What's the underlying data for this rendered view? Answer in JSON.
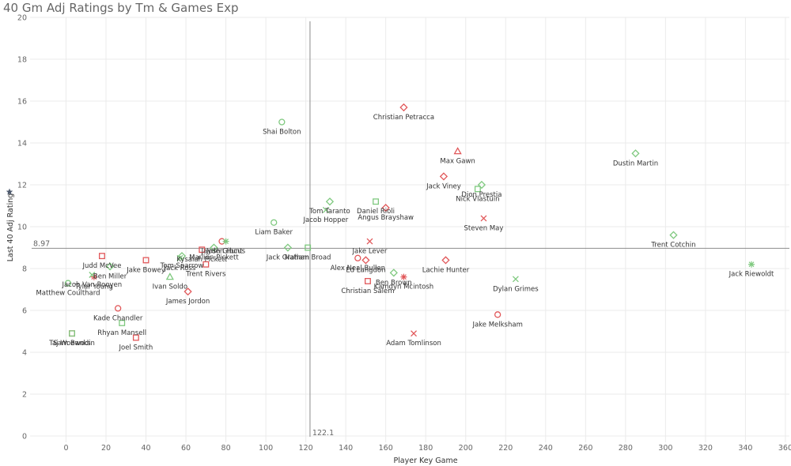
{
  "colors": {
    "red": "#e15759",
    "green": "#7fc97f",
    "grid": "#ebebeb",
    "ref": "#8c8c8c",
    "star": "#4e5a6e"
  },
  "chart_data": {
    "type": "scatter",
    "title": "40 Gm Adj Ratings by Tm & Games Exp",
    "xlabel": "Player Key Game",
    "ylabel": "Last 40 Adj Rating",
    "ylabel_icon": "star-icon",
    "xlim": [
      -18,
      362
    ],
    "ylim": [
      -0.3,
      20
    ],
    "xticks": [
      "0",
      "20",
      "40",
      "60",
      "80",
      "100",
      "120",
      "140",
      "160",
      "180",
      "200",
      "220",
      "240",
      "260",
      "280",
      "300",
      "320",
      "340",
      "360"
    ],
    "yticks": [
      "0",
      "2",
      "4",
      "6",
      "8",
      "10",
      "12",
      "14",
      "16",
      "18",
      "20"
    ],
    "ref_x": {
      "value": 122.1,
      "label": "122.1"
    },
    "ref_y": {
      "value": 8.97,
      "label": "8.97"
    },
    "points": [
      {
        "x": 169,
        "y": 15.7,
        "label": "Christian Petracca",
        "shape": "diamond",
        "color": "red"
      },
      {
        "x": 196,
        "y": 13.6,
        "label": "Max Gawn",
        "shape": "triangle",
        "color": "red"
      },
      {
        "x": 189,
        "y": 12.4,
        "label": "Jack Viney",
        "shape": "diamond",
        "color": "red"
      },
      {
        "x": 209,
        "y": 10.4,
        "label": "Steven May",
        "shape": "x",
        "color": "red"
      },
      {
        "x": 160,
        "y": 10.9,
        "label": "Angus Brayshaw",
        "shape": "diamond",
        "color": "red"
      },
      {
        "x": 152,
        "y": 9.3,
        "label": "Jake Lever",
        "shape": "x",
        "color": "red"
      },
      {
        "x": 190,
        "y": 8.4,
        "label": "Lachie Hunter",
        "shape": "diamond",
        "color": "red"
      },
      {
        "x": 146,
        "y": 8.5,
        "label": "Alex Neal-Bullen",
        "shape": "circle",
        "color": "red"
      },
      {
        "x": 150,
        "y": 8.4,
        "label": "Ed Langdon",
        "shape": "diamond",
        "color": "red"
      },
      {
        "x": 151,
        "y": 7.4,
        "label": "Christian Salem",
        "shape": "square",
        "color": "red"
      },
      {
        "x": 169,
        "y": 7.6,
        "label": "Kamdyn Mcintosh",
        "shape": "star",
        "color": "red"
      },
      {
        "x": 174,
        "y": 4.9,
        "label": "Adam Tomlinson",
        "shape": "x",
        "color": "red"
      },
      {
        "x": 216,
        "y": 5.8,
        "label": "Jake Melksham",
        "shape": "circle",
        "color": "red"
      },
      {
        "x": 78,
        "y": 9.3,
        "label": "Jayden Hunt",
        "shape": "circle",
        "color": "red"
      },
      {
        "x": 68,
        "y": 8.9,
        "label": "Kysaiah Pickett",
        "shape": "square",
        "color": "red"
      },
      {
        "x": 70,
        "y": 8.2,
        "label": "Trent Rivers",
        "shape": "square",
        "color": "red"
      },
      {
        "x": 61,
        "y": 6.9,
        "label": "James Jordon",
        "shape": "diamond",
        "color": "red"
      },
      {
        "x": 40,
        "y": 8.4,
        "label": "Jake Bowey",
        "shape": "square",
        "color": "red"
      },
      {
        "x": 18,
        "y": 8.6,
        "label": "Judd McVee",
        "shape": "square",
        "color": "red"
      },
      {
        "x": 14,
        "y": 7.6,
        "label": "Tylar Young",
        "shape": "star",
        "color": "red"
      },
      {
        "x": 26,
        "y": 6.1,
        "label": "Kade Chandler",
        "shape": "circle",
        "color": "red"
      },
      {
        "x": 3,
        "y": 4.9,
        "label": "Taj Woewodin",
        "shape": "square",
        "color": "red"
      },
      {
        "x": 35,
        "y": 4.7,
        "label": "Joel Smith",
        "shape": "square",
        "color": "red"
      },
      {
        "x": 108,
        "y": 15.0,
        "label": "Shai Bolton",
        "shape": "circle",
        "color": "green"
      },
      {
        "x": 285,
        "y": 13.5,
        "label": "Dustin Martin",
        "shape": "diamond",
        "color": "green"
      },
      {
        "x": 208,
        "y": 12.0,
        "label": "Dion Prestia",
        "shape": "diamond",
        "color": "green"
      },
      {
        "x": 206,
        "y": 11.8,
        "label": "Nick Vlastuin",
        "shape": "square",
        "color": "green"
      },
      {
        "x": 304,
        "y": 9.6,
        "label": "Trent Cotchin",
        "shape": "diamond",
        "color": "green"
      },
      {
        "x": 343,
        "y": 8.2,
        "label": "Jack Riewoldt",
        "shape": "star",
        "color": "green"
      },
      {
        "x": 225,
        "y": 7.5,
        "label": "Dylan Grimes",
        "shape": "x",
        "color": "green"
      },
      {
        "x": 155,
        "y": 11.2,
        "label": "Daniel Rioli",
        "shape": "square",
        "color": "green"
      },
      {
        "x": 132,
        "y": 11.2,
        "label": "Tom Taranto",
        "shape": "diamond",
        "color": "green"
      },
      {
        "x": 130,
        "y": 10.8,
        "label": "Jacob Hopper",
        "shape": "x",
        "color": "green"
      },
      {
        "x": 104,
        "y": 10.2,
        "label": "Liam Baker",
        "shape": "circle",
        "color": "green"
      },
      {
        "x": 111,
        "y": 9.0,
        "label": "Jack Graham",
        "shape": "diamond",
        "color": "green"
      },
      {
        "x": 121,
        "y": 9.0,
        "label": "Nathan Broad",
        "shape": "square",
        "color": "green"
      },
      {
        "x": 164,
        "y": 7.8,
        "label": "Ben Brown",
        "shape": "diamond",
        "color": "green"
      },
      {
        "x": 80,
        "y": 9.3,
        "label": "Josh Gibcus",
        "shape": "star",
        "color": "green"
      },
      {
        "x": 74,
        "y": 9.0,
        "label": "Marlion Pickett",
        "shape": "diamond",
        "color": "green"
      },
      {
        "x": 58,
        "y": 8.6,
        "label": "Tom Sparrow",
        "shape": "diamond",
        "color": "green"
      },
      {
        "x": 57,
        "y": 8.5,
        "label": "Jack Ross",
        "shape": "x",
        "color": "green"
      },
      {
        "x": 52,
        "y": 7.6,
        "label": "Ivan Soldo",
        "shape": "triangle",
        "color": "green"
      },
      {
        "x": 22,
        "y": 8.1,
        "label": "Ben Miller",
        "shape": "diamond",
        "color": "green"
      },
      {
        "x": 13,
        "y": 7.7,
        "label": "Jacob Van Rooyen",
        "shape": "x",
        "color": "green"
      },
      {
        "x": 1,
        "y": 7.3,
        "label": "Matthew Coulthard",
        "shape": "circle",
        "color": "green"
      },
      {
        "x": 28,
        "y": 5.4,
        "label": "Rhyan Mansell",
        "shape": "square",
        "color": "green"
      },
      {
        "x": 3,
        "y": 4.9,
        "label": "Sam Banks",
        "shape": "square",
        "color": "green"
      }
    ]
  }
}
